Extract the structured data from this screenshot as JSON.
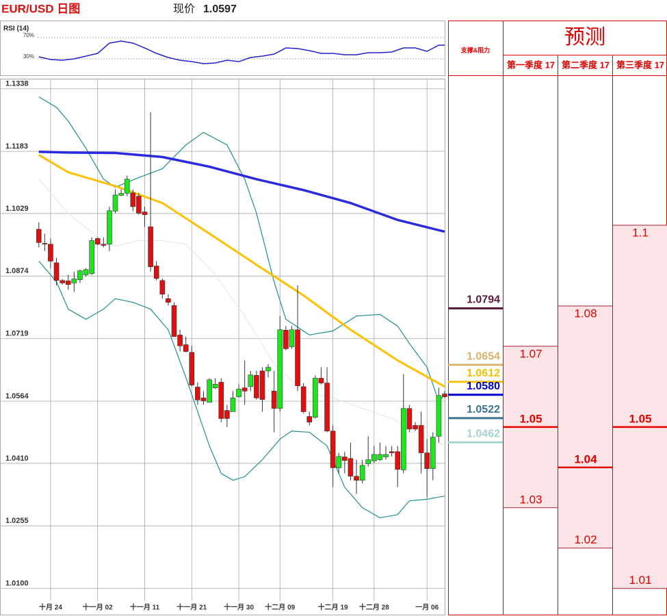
{
  "chart_data": [
    {
      "type": "candlestick",
      "title": "EUR/USD 日图",
      "price_label": "现价",
      "price": 1.0597,
      "xlim": [
        -6.6,
        69
      ],
      "ylim": [
        1.0069,
        1.1363
      ],
      "grid": true,
      "xticks": [
        {
          "value": 2,
          "label": "十月 24"
        },
        {
          "value": 10,
          "label": "十一月 02"
        },
        {
          "value": 18,
          "label": "十一月 11"
        },
        {
          "value": 26,
          "label": "十一月 21"
        },
        {
          "value": 34,
          "label": "十一月 30"
        },
        {
          "value": 41,
          "label": "十二月 09"
        },
        {
          "value": 50,
          "label": "十二月 19"
        },
        {
          "value": 57,
          "label": "十二月 28"
        },
        {
          "value": 66,
          "label": "一月 06"
        }
      ],
      "yticks": [
        {
          "value": 1.01,
          "label": "1.0100"
        },
        1.0255,
        {
          "value": 1.041,
          "label": "1.0410"
        },
        1.0564,
        1.0719,
        1.0874,
        1.1029,
        1.1183,
        1.1338
      ],
      "up_color": "#1ee61e",
      "down_color": "#e01010",
      "x": [
        0,
        1,
        2,
        3,
        4,
        5,
        6,
        7,
        8,
        9,
        10,
        11,
        12,
        13,
        14,
        15,
        16,
        17,
        18,
        19,
        20,
        21,
        22,
        23,
        24,
        25,
        26,
        27,
        28,
        29,
        30,
        31,
        32,
        33,
        34,
        35,
        36,
        37,
        38,
        39,
        40,
        41,
        42,
        43,
        44,
        45,
        46,
        47,
        48,
        49,
        50,
        51,
        52,
        53,
        54,
        55,
        56,
        57,
        58,
        59,
        60,
        61,
        62,
        63,
        64,
        65,
        66,
        67,
        68,
        69
      ],
      "open": [
        1.099,
        1.0955,
        1.0953,
        1.0907,
        1.0863,
        1.0862,
        1.0857,
        1.0865,
        1.0877,
        1.088,
        1.0967,
        1.0953,
        1.0953,
        1.1035,
        1.1074,
        1.1079,
        1.108,
        1.1072,
        1.1033,
        1.0996,
        1.0899,
        1.0863,
        1.0818,
        1.0801,
        1.0728,
        1.0704,
        1.0685,
        1.0599,
        1.0572,
        1.0561,
        1.0597,
        1.0611,
        1.0541,
        1.0538,
        1.0575,
        1.0597,
        1.06,
        1.0628,
        1.0639,
        1.0639,
        1.0589,
        1.0546,
        1.074,
        1.0699,
        1.0741,
        1.06,
        1.0526,
        1.0524,
        1.0621,
        1.0609,
        1.049,
        1.0399,
        1.0426,
        1.0422,
        1.0378,
        1.0368,
        1.0409,
        1.0416,
        1.0419,
        1.0426,
        1.0439,
        1.0439,
        1.0394,
        1.0546,
        1.0504,
        1.0504,
        1.0436,
        1.0397,
        1.0477,
        1.0582
      ],
      "high": [
        1.1007,
        1.0979,
        1.0967,
        1.0919,
        1.0867,
        1.0877,
        1.0885,
        1.089,
        1.0894,
        1.097,
        1.097,
        1.097,
        1.1046,
        1.1089,
        1.1089,
        1.1123,
        1.1089,
        1.108,
        1.1046,
        1.128,
        1.0911,
        1.0868,
        1.0829,
        1.0809,
        1.0741,
        1.0724,
        1.0701,
        1.0611,
        1.0589,
        1.0621,
        1.0621,
        1.0621,
        1.0555,
        1.0589,
        1.0606,
        1.0665,
        1.0639,
        1.0639,
        1.0648,
        1.0656,
        1.0639,
        1.0775,
        1.075,
        1.075,
        1.0851,
        1.0609,
        1.0538,
        1.0628,
        1.0648,
        1.0648,
        1.0504,
        1.0436,
        1.0439,
        1.0461,
        1.0419,
        1.0419,
        1.0477,
        1.0453,
        1.0461,
        1.0453,
        1.0453,
        1.0453,
        1.0631,
        1.0555,
        1.0512,
        1.0538,
        1.047,
        1.0487,
        1.0597,
        1.0589
      ],
      "low": [
        1.0945,
        1.0936,
        1.0894,
        1.0851,
        1.0853,
        1.084,
        1.0835,
        1.0857,
        1.0873,
        1.0877,
        1.095,
        1.0945,
        1.0936,
        1.103,
        1.1072,
        1.1072,
        1.1035,
        1.1026,
        1.0996,
        1.0885,
        1.0863,
        1.0818,
        1.0801,
        1.0724,
        1.0687,
        1.0685,
        1.06,
        1.0555,
        1.0555,
        1.0561,
        1.0594,
        1.0512,
        1.05,
        1.0538,
        1.0572,
        1.0555,
        1.0589,
        1.0568,
        1.0538,
        1.0623,
        1.0487,
        1.0538,
        1.069,
        1.0694,
        1.0589,
        1.0534,
        1.0504,
        1.0521,
        1.0606,
        1.0487,
        1.0351,
        1.0385,
        1.0385,
        1.0368,
        1.0334,
        1.036,
        1.0402,
        1.0411,
        1.0416,
        1.0419,
        1.0427,
        1.0351,
        1.0385,
        1.0487,
        1.049,
        1.0385,
        1.0326,
        1.0368,
        1.0461,
        1.0572
      ],
      "close": [
        1.0957,
        1.0953,
        1.0911,
        1.0863,
        1.0857,
        1.0853,
        1.0867,
        1.0887,
        1.089,
        1.0962,
        1.0953,
        1.095,
        1.1036,
        1.1075,
        1.1079,
        1.1114,
        1.1046,
        1.103,
        1.1026,
        1.0897,
        1.0868,
        1.0829,
        1.0809,
        1.0724,
        1.0701,
        1.0687,
        1.0604,
        1.0567,
        1.0565,
        1.0617,
        1.0606,
        1.0521,
        1.0521,
        1.0572,
        1.0594,
        1.0589,
        1.0629,
        1.0572,
        1.0568,
        1.0648,
        1.0546,
        1.0741,
        1.0694,
        1.0741,
        1.0602,
        1.0538,
        1.0512,
        1.0621,
        1.0609,
        1.049,
        1.0399,
        1.0427,
        1.0417,
        1.0378,
        1.0368,
        1.0405,
        1.0419,
        1.0432,
        1.0432,
        1.0432,
        1.0436,
        1.0395,
        1.0546,
        1.0495,
        1.0495,
        1.0436,
        1.0397,
        1.0475,
        1.0578,
        1.0575
      ],
      "lines": [
        {
          "color": "#e4e4e4",
          "width": 1,
          "x": [
            0,
            5,
            10,
            13,
            17,
            21,
            25,
            30,
            35,
            40,
            45,
            50,
            55,
            60,
            65,
            69
          ],
          "values": [
            1.1114,
            1.103,
            1.097,
            1.0948,
            1.0962,
            1.0962,
            1.0953,
            1.0877,
            1.0775,
            1.0656,
            1.0589,
            1.0572,
            1.0546,
            1.0521,
            1.0478,
            1.0453
          ]
        },
        {
          "color": "#1f8f8f",
          "width": 1.2,
          "x": [
            0,
            3,
            5,
            8,
            11,
            13,
            17,
            21,
            25,
            28,
            32,
            35,
            37,
            40,
            42,
            46,
            50,
            54,
            58,
            61,
            63,
            66,
            68,
            69
          ],
          "values": [
            1.1318,
            1.1292,
            1.1258,
            1.1191,
            1.1114,
            1.1094,
            1.1118,
            1.114,
            1.1199,
            1.123,
            1.1199,
            1.1114,
            1.103,
            1.086,
            1.0767,
            1.0728,
            1.0738,
            1.0775,
            1.0779,
            1.075,
            1.0707,
            1.0648,
            1.0563,
            1.058
          ]
        },
        {
          "color": "#1f8f8f",
          "width": 1.2,
          "x": [
            0,
            3,
            5,
            8,
            11,
            13,
            16,
            19,
            22,
            25,
            27,
            29,
            31,
            33,
            35,
            38,
            41,
            43,
            46,
            49,
            52,
            55,
            58,
            61,
            63,
            66,
            69
          ],
          "values": [
            1.0911,
            1.086,
            1.0792,
            1.0767,
            1.0792,
            1.0818,
            1.0809,
            1.0792,
            1.0741,
            1.0623,
            1.0538,
            1.0453,
            1.0385,
            1.0368,
            1.0377,
            1.0419,
            1.047,
            1.049,
            1.0487,
            1.0453,
            1.0351,
            1.03,
            1.0275,
            1.0283,
            1.0317,
            1.0321,
            1.0329
          ]
        },
        {
          "color": "#ffc000",
          "width": 3,
          "x": [
            0,
            5,
            13,
            21,
            29,
            37,
            45,
            53,
            61,
            69
          ],
          "values": [
            1.1174,
            1.1131,
            1.1097,
            1.1055,
            1.0979,
            1.0902,
            1.0826,
            1.0741,
            1.0665,
            1.06
          ]
        },
        {
          "color": "#2a2ae0",
          "width": 3.5,
          "x": [
            0,
            5,
            13,
            21,
            29,
            37,
            45,
            53,
            61,
            69
          ],
          "values": [
            1.1182,
            1.118,
            1.1179,
            1.1169,
            1.1145,
            1.1114,
            1.1087,
            1.1055,
            1.1013,
            1.0984
          ]
        }
      ]
    },
    {
      "type": "line",
      "title": "RSI (14)",
      "xlim": [
        -6.6,
        69
      ],
      "ylim": [
        0,
        100
      ],
      "yticks": [
        {
          "value": 30,
          "label": "30%"
        },
        {
          "value": 70,
          "label": "70%"
        }
      ],
      "series": [
        {
          "color": "#2020d0",
          "x": [
            0,
            2,
            4,
            6,
            8,
            10,
            12,
            14,
            16,
            18,
            20,
            22,
            24,
            26,
            28,
            30,
            32,
            34,
            36,
            38,
            40,
            42,
            44,
            46,
            48,
            50,
            52,
            54,
            56,
            58,
            60,
            62,
            64,
            66,
            68,
            69
          ],
          "values": [
            33.9,
            28.7,
            27.4,
            30,
            35.2,
            40.3,
            59.7,
            63.5,
            59.7,
            50.6,
            40.3,
            32.6,
            27.4,
            24.8,
            21,
            22.3,
            27.4,
            24.8,
            32.6,
            35.2,
            39,
            50.6,
            49.4,
            45.5,
            40.3,
            40.3,
            37.7,
            37.7,
            41.6,
            41.6,
            42.9,
            50.6,
            50.6,
            44.2,
            55.8,
            55.8
          ]
        }
      ]
    }
  ],
  "levels_table": {
    "title": "支撑&阻力",
    "levels": [
      {
        "value": 1.0794,
        "color": "#5a1a3a"
      },
      {
        "value": 1.0654,
        "color": "#d8b26a"
      },
      {
        "value": 1.0612,
        "color": "#f2c200"
      },
      {
        "value": 1.058,
        "label": "1.0580",
        "color": "#0000cc"
      },
      {
        "value": 1.0522,
        "color": "#3a7392"
      },
      {
        "value": 1.0462,
        "color": "#a8d2d2"
      }
    ]
  },
  "forecast_table": {
    "title": "预测",
    "columns": [
      {
        "name": "第一季度 17",
        "values": [
          1.07,
          1.05,
          1.03
        ]
      },
      {
        "name": "第二季度 17",
        "values": [
          1.08,
          1.04,
          1.02
        ]
      },
      {
        "name": "第三季度 17",
        "values": [
          1.1,
          1.05,
          1.01
        ]
      }
    ]
  }
}
